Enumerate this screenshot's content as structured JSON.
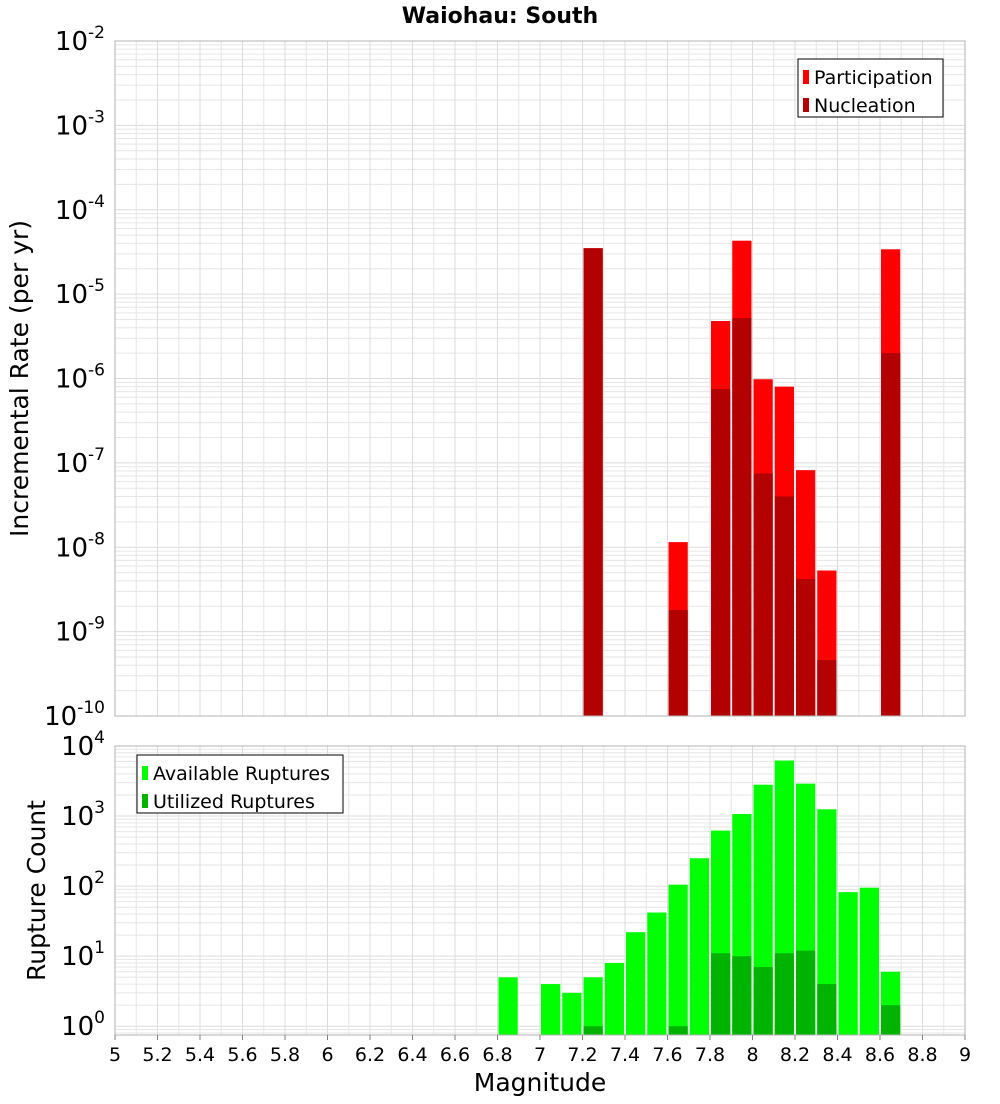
{
  "title": "Waiohau: South",
  "colors": {
    "participation": "#ff0000",
    "nucleation": "#b30000",
    "available": "#00ff00",
    "utilized": "#00b300",
    "grid": "#e6e6e6",
    "frame": "#b3b3b3"
  },
  "chart_data": [
    {
      "type": "bar",
      "title": "Waiohau: South",
      "ylabel": "Incremental Rate (per yr)",
      "xlabel": "",
      "xlim": [
        5,
        9
      ],
      "ylim": [
        1e-10,
        0.01
      ],
      "yscale": "log",
      "grid": true,
      "legend_position": "top-right",
      "y_tick_exponents": [
        "-2",
        "-3",
        "-4",
        "-5",
        "-6",
        "-7",
        "-8",
        "-9",
        "-10"
      ],
      "y_tick_base": "10",
      "x": [
        7.25,
        7.65,
        7.85,
        7.95,
        8.05,
        8.15,
        8.25,
        8.35,
        8.65
      ],
      "series": [
        {
          "name": "Participation",
          "values": [
            3.5e-05,
            1.15e-08,
            4.8e-06,
            4.3e-05,
            9.8e-07,
            8e-07,
            8.2e-08,
            5.3e-09,
            3.4e-05
          ]
        },
        {
          "name": "Nucleation",
          "values": [
            3.5e-05,
            1.8e-09,
            7.5e-07,
            5.2e-06,
            7.5e-08,
            4e-08,
            4.2e-09,
            4.6e-10,
            2e-06
          ]
        }
      ]
    },
    {
      "type": "bar",
      "title": "",
      "ylabel": "Rupture Count",
      "xlabel": "Magnitude",
      "xlim": [
        5,
        9
      ],
      "ylim": [
        0.75,
        10000
      ],
      "yscale": "log",
      "grid": true,
      "legend_position": "top-left",
      "y_tick_exponents": [
        "4",
        "3",
        "2",
        "1",
        "0"
      ],
      "y_tick_base": "10",
      "x_ticks": [
        "5",
        "5.2",
        "5.4",
        "5.6",
        "5.8",
        "6",
        "6.2",
        "6.4",
        "6.6",
        "6.8",
        "7",
        "7.2",
        "7.4",
        "7.6",
        "7.8",
        "8",
        "8.2",
        "8.4",
        "8.6",
        "8.8",
        "9"
      ],
      "x": [
        6.85,
        7.05,
        7.15,
        7.25,
        7.35,
        7.45,
        7.55,
        7.65,
        7.75,
        7.85,
        7.95,
        8.05,
        8.15,
        8.25,
        8.35,
        8.45,
        8.55,
        8.65
      ],
      "series": [
        {
          "name": "Available Ruptures",
          "values": [
            5,
            4,
            3,
            5,
            8,
            22,
            42,
            105,
            250,
            620,
            1070,
            2800,
            6200,
            2900,
            1250,
            82,
            95,
            6
          ]
        },
        {
          "name": "Utilized Ruptures",
          "values": [
            0,
            0,
            0,
            1,
            0,
            0,
            0,
            1,
            0,
            11,
            10,
            7,
            11,
            12,
            4,
            0,
            0,
            2
          ]
        }
      ]
    }
  ]
}
